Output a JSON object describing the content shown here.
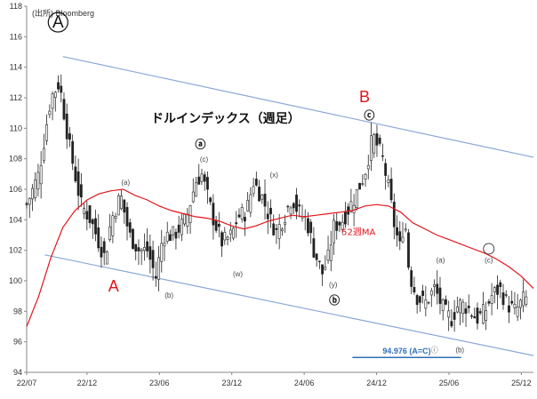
{
  "chart_data": {
    "type": "candlestick",
    "title": "ドルインデックス（週足）",
    "source": "(出所) Bloomberg",
    "ylim": [
      94,
      118
    ],
    "yticks": [
      94,
      96,
      98,
      100,
      102,
      104,
      106,
      108,
      110,
      112,
      114,
      116,
      118
    ],
    "xlabels": [
      "22/07",
      "22/12",
      "23/06",
      "23/12",
      "24/06",
      "24/12",
      "25/06",
      "25/12"
    ],
    "xlabel_times": [
      0,
      5,
      11,
      17,
      23,
      29,
      35,
      41
    ],
    "xlim": [
      0,
      42
    ],
    "grid": false,
    "price_path": [
      [
        0,
        105
      ],
      [
        1,
        107
      ],
      [
        2,
        112
      ],
      [
        2.7,
        113
      ],
      [
        3.5,
        109
      ],
      [
        4.5,
        105
      ],
      [
        5.3,
        104
      ],
      [
        6,
        102.5
      ],
      [
        6.5,
        101.5
      ],
      [
        7,
        104
      ],
      [
        7.8,
        105.6
      ],
      [
        8.5,
        103
      ],
      [
        9.3,
        102
      ],
      [
        10,
        102
      ],
      [
        10.7,
        100.2
      ],
      [
        11.3,
        103
      ],
      [
        12.2,
        103
      ],
      [
        13.2,
        104
      ],
      [
        14,
        106.5
      ],
      [
        14.5,
        107
      ],
      [
        15,
        105.5
      ],
      [
        15.5,
        104
      ],
      [
        16.2,
        102.5
      ],
      [
        17,
        103
      ],
      [
        17.5,
        104.2
      ],
      [
        18.2,
        104.5
      ],
      [
        18.8,
        106.5
      ],
      [
        19.5,
        105.5
      ],
      [
        20.2,
        104
      ],
      [
        20.7,
        103.2
      ],
      [
        21.5,
        104.5
      ],
      [
        22,
        105.5
      ],
      [
        22.5,
        104.5
      ],
      [
        23.2,
        104
      ],
      [
        23.8,
        102
      ],
      [
        24.5,
        100.5
      ],
      [
        25,
        101.5
      ],
      [
        25.4,
        103.5
      ],
      [
        26.2,
        104
      ],
      [
        27.2,
        105.5
      ],
      [
        28,
        107
      ],
      [
        28.7,
        109.5
      ],
      [
        29.5,
        108
      ],
      [
        30,
        106
      ],
      [
        30.5,
        103.5
      ],
      [
        31,
        102
      ],
      [
        31.3,
        104.5
      ],
      [
        31.7,
        100.5
      ],
      [
        32.3,
        99
      ],
      [
        33,
        98.5
      ],
      [
        33.8,
        99.5
      ],
      [
        34.6,
        98
      ],
      [
        35.2,
        97.5
      ],
      [
        35.8,
        98.5
      ],
      [
        36.5,
        98.3
      ],
      [
        37.3,
        97.5
      ],
      [
        38,
        98
      ],
      [
        38.5,
        99
      ],
      [
        39.2,
        99.5
      ],
      [
        39.8,
        98.5
      ],
      [
        40.5,
        98
      ],
      [
        41.2,
        98.8
      ]
    ],
    "series": [
      {
        "name": "52週MA",
        "color": "#e3141b",
        "x": [
          0,
          1,
          2,
          3,
          4,
          5,
          6,
          7,
          8,
          9,
          10,
          11,
          12,
          13,
          14,
          15,
          16,
          17,
          18,
          19,
          20,
          21,
          22,
          23,
          24,
          25,
          26,
          27,
          28,
          29,
          30,
          31,
          32,
          33,
          34,
          35,
          36,
          37,
          38,
          39,
          40,
          41,
          42
        ],
        "y": [
          97,
          99,
          101.5,
          103.5,
          104.6,
          105.3,
          105.7,
          105.9,
          106,
          105.6,
          105.3,
          104.9,
          104.6,
          104.4,
          104.2,
          104.1,
          103.9,
          103.6,
          103.4,
          103.6,
          103.9,
          104.1,
          104.3,
          104.2,
          104.3,
          104.4,
          104.5,
          104.6,
          104.9,
          105,
          104.9,
          104.5,
          103.8,
          103.4,
          103,
          102.7,
          102.4,
          102.1,
          101.8,
          101.4,
          100.9,
          100.3,
          99.5
        ]
      }
    ],
    "trendlines": [
      {
        "from": [
          3,
          114.7
        ],
        "to": [
          42,
          108.1
        ],
        "color": "#8aa7d8"
      },
      {
        "from": [
          1.5,
          101.7
        ],
        "to": [
          42,
          95.1
        ],
        "color": "#8aa7d8"
      }
    ],
    "target_line": {
      "x": [
        27,
        36
      ],
      "y": 94.976,
      "label": "94.976 (A=C)",
      "color": "#2d6fb8"
    },
    "annotations": [
      {
        "text": "A",
        "x": 2.6,
        "y": 116.6,
        "style": "circled-large"
      },
      {
        "text": "A",
        "x": 7.2,
        "y": 99.3,
        "style": "red"
      },
      {
        "text": "B",
        "x": 28,
        "y": 111.7,
        "style": "red"
      },
      {
        "text": "ⓒ",
        "x": 28.4,
        "y": 110.6,
        "style": "bold"
      },
      {
        "text": "ⓐ",
        "x": 14.4,
        "y": 108.7,
        "style": "bold"
      },
      {
        "text": "ⓑ",
        "x": 25.5,
        "y": 98.5,
        "style": "bold"
      },
      {
        "text": "(a)",
        "x": 8.2,
        "y": 106.3,
        "style": "small"
      },
      {
        "text": "(b)",
        "x": 11.8,
        "y": 98.9,
        "style": "small"
      },
      {
        "text": "(c)",
        "x": 14.7,
        "y": 107.8,
        "style": "small"
      },
      {
        "text": "(w)",
        "x": 17.5,
        "y": 100.3,
        "style": "small"
      },
      {
        "text": "(x)",
        "x": 20.5,
        "y": 106.8,
        "style": "small"
      },
      {
        "text": "(y)",
        "x": 25.4,
        "y": 99.6,
        "style": "small"
      },
      {
        "text": "(a)",
        "x": 34.3,
        "y": 101.2,
        "style": "small"
      },
      {
        "text": "ⓘ",
        "x": 33.8,
        "y": 95.3,
        "style": "small-bold"
      },
      {
        "text": "(b)",
        "x": 35.9,
        "y": 95.3,
        "style": "small"
      },
      {
        "text": "(c)",
        "x": 38.3,
        "y": 101.2,
        "style": "small"
      },
      {
        "text": "52週MA",
        "x": 27.5,
        "y": 103.0,
        "style": "ma-label"
      }
    ],
    "circle_marker": {
      "x": 38.3,
      "y": 102.1
    }
  }
}
